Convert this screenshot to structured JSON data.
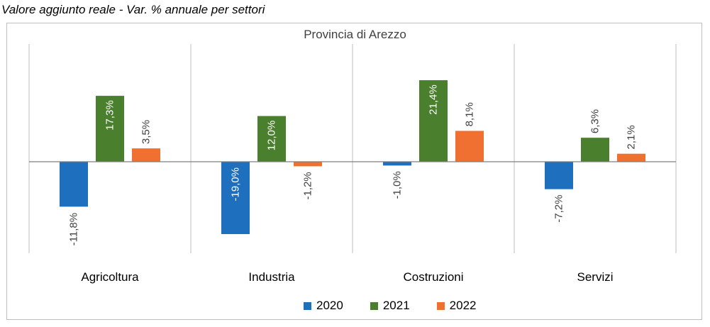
{
  "caption": "Valore aggiunto reale - Var. % annuale per settori",
  "chart_data": {
    "type": "bar",
    "title": "Provincia di Arezzo",
    "categories": [
      "Agricoltura",
      "Industria",
      "Costruzioni",
      "Servizi"
    ],
    "series": [
      {
        "name": "2020",
        "color": "#1F6FBF",
        "values": [
          -11.8,
          -19.0,
          -1.0,
          -7.2
        ],
        "labels": [
          "-11,8%",
          "-19,0%",
          "-1,0%",
          "-7,2%"
        ]
      },
      {
        "name": "2021",
        "color": "#4A7F2E",
        "values": [
          17.3,
          12.0,
          21.4,
          6.3
        ],
        "labels": [
          "17,3%",
          "12,0%",
          "21,4%",
          "6,3%"
        ]
      },
      {
        "name": "2022",
        "color": "#EF7030",
        "values": [
          3.5,
          -1.2,
          8.1,
          2.1
        ],
        "labels": [
          "3,5%",
          "-1,2%",
          "8,1%",
          "2,1%"
        ]
      }
    ],
    "ylim": [
      -20,
      25
    ],
    "grid": false,
    "legend": "bottom"
  }
}
